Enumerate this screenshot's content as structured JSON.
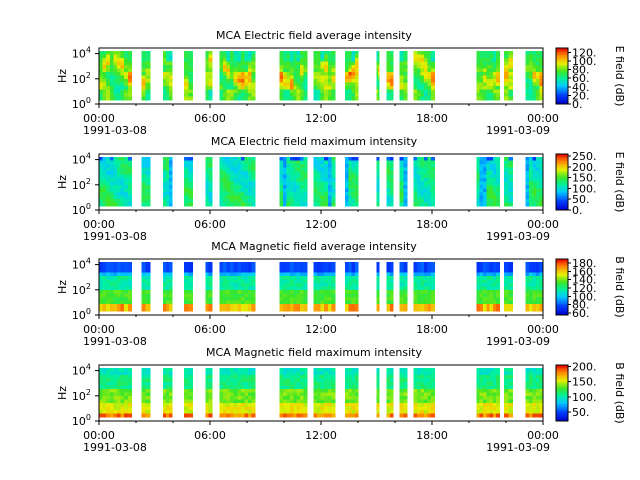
{
  "chart_data": [
    {
      "type": "heatmap",
      "title": "MCA  Electric field average intensity",
      "ylabel": "Hz",
      "y_scale": "log",
      "yticks": [
        "10^0",
        "10^2",
        "10^4"
      ],
      "xticks": [
        "00:00",
        "06:00",
        "12:00",
        "18:00",
        "00:00"
      ],
      "xdates": [
        "1991-03-08",
        "1991-03-09"
      ],
      "colorbar": {
        "label": "E field (dB)",
        "range": [
          0,
          130
        ],
        "ticks": [
          "0.",
          "20.",
          "40.",
          "60.",
          "80.",
          "100.",
          "120."
        ]
      },
      "colormap": "rainbow",
      "palette": "avg"
    },
    {
      "type": "heatmap",
      "title": "MCA  Electric field maximum intensity",
      "ylabel": "Hz",
      "y_scale": "log",
      "yticks": [
        "10^0",
        "10^2",
        "10^4"
      ],
      "xticks": [
        "00:00",
        "06:00",
        "12:00",
        "18:00",
        "00:00"
      ],
      "xdates": [
        "1991-03-08",
        "1991-03-09"
      ],
      "colorbar": {
        "label": "E field (dB)",
        "range": [
          0,
          260
        ],
        "ticks": [
          "0.",
          "50.",
          "100.",
          "150.",
          "200.",
          "250."
        ]
      },
      "colormap": "rainbow",
      "palette": "emax"
    },
    {
      "type": "heatmap",
      "title": "MCA  Magnetic field average intensity",
      "ylabel": "Hz",
      "y_scale": "log",
      "yticks": [
        "10^0",
        "10^2",
        "10^4"
      ],
      "xticks": [
        "00:00",
        "06:00",
        "12:00",
        "18:00",
        "00:00"
      ],
      "xdates": [
        "1991-03-08",
        "1991-03-09"
      ],
      "colorbar": {
        "label": "B field (dB)",
        "range": [
          55,
          190
        ],
        "ticks": [
          "60.",
          "80.",
          "100.",
          "120.",
          "140.",
          "160.",
          "180."
        ]
      },
      "colormap": "rainbow",
      "palette": "bavg"
    },
    {
      "type": "heatmap",
      "title": "MCA  Magnetic field maximum intensity",
      "ylabel": "Hz",
      "y_scale": "log",
      "yticks": [
        "10^0",
        "10^2",
        "10^4"
      ],
      "xticks": [
        "00:00",
        "06:00",
        "12:00",
        "18:00",
        "00:00"
      ],
      "xdates": [
        "1991-03-08",
        "1991-03-09"
      ],
      "colorbar": {
        "label": "B field (dB)",
        "range": [
          20,
          205
        ],
        "ticks": [
          "50.",
          "100.",
          "150.",
          "200."
        ]
      },
      "colormap": "rainbow",
      "palette": "bmax"
    }
  ]
}
